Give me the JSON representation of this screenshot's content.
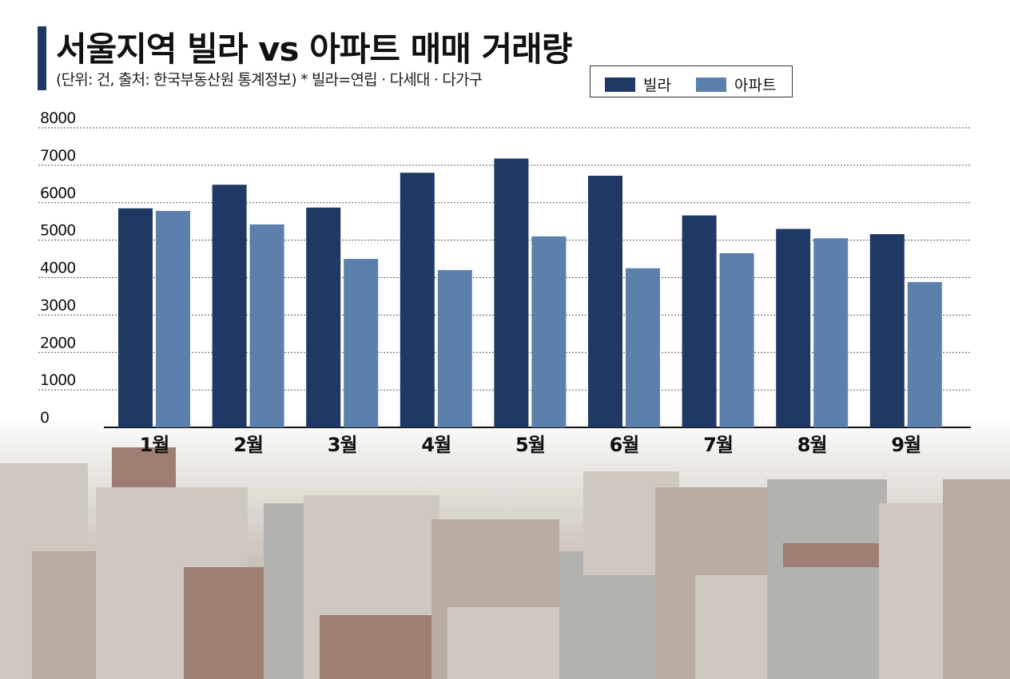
{
  "title": "서울지역 빌라 vs 아파트 매매 거래량",
  "subtitle": "(단위: 건, 출처: 한국부동산원 통계정보) * 빌라=연립 · 다세대 · 다가구",
  "colors": {
    "villa": "#1f3864",
    "apartment": "#5b80ab",
    "title_bar": "#1f3864"
  },
  "chart_data": {
    "type": "bar",
    "categories": [
      "1월",
      "2월",
      "3월",
      "4월",
      "5월",
      "6월",
      "7월",
      "8월",
      "9월"
    ],
    "series": [
      {
        "name": "빌라",
        "values": [
          5850,
          6480,
          5870,
          6800,
          7180,
          6720,
          5660,
          5300,
          5160
        ]
      },
      {
        "name": "아파트",
        "values": [
          5780,
          5420,
          4500,
          4200,
          5100,
          4250,
          4650,
          5050,
          3880
        ]
      }
    ],
    "yticks": [
      "0",
      "1000",
      "2000",
      "3000",
      "4000",
      "5000",
      "6000",
      "7000",
      "8000"
    ],
    "ylim": [
      0,
      8000
    ],
    "grid": true,
    "legend_position": "top-right"
  }
}
